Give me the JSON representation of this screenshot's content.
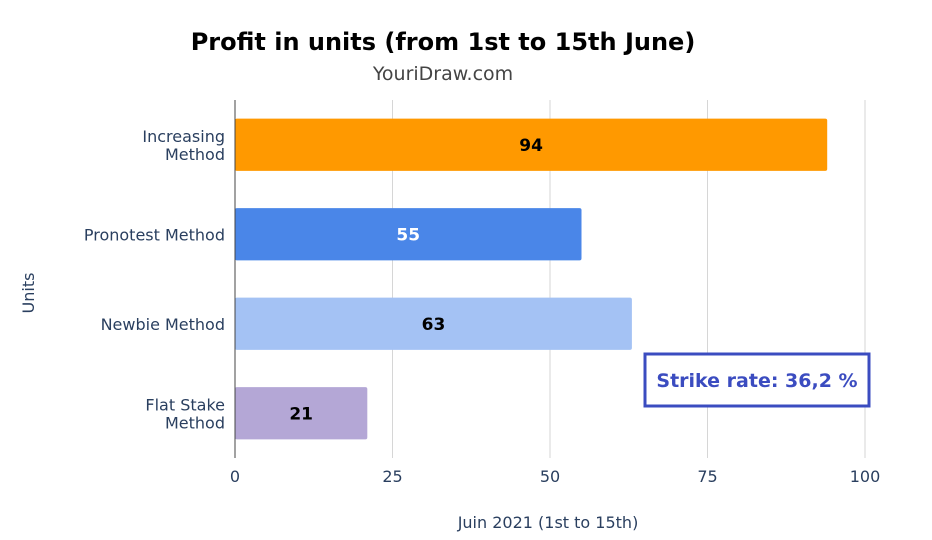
{
  "chart_data": {
    "type": "bar",
    "orientation": "horizontal",
    "title": "Profit in units (from 1st to 15th June)",
    "subtitle": "YouriDraw.com",
    "xlabel": "Juin 2021 (1st to 15th)",
    "ylabel": "Units",
    "xlim": [
      0,
      100
    ],
    "xticks": [
      "0",
      "25",
      "50",
      "75",
      "100"
    ],
    "grid": true,
    "categories": [
      [
        "Increasing",
        "Method"
      ],
      [
        "Pronotest Method"
      ],
      [
        "Newbie Method"
      ],
      [
        "Flat Stake",
        "Method"
      ]
    ],
    "values": [
      94,
      55,
      63,
      21
    ],
    "data_labels": [
      "94",
      "55",
      "63",
      "21"
    ],
    "colors": [
      "#FF9900",
      "#4A86E8",
      "#A4C2F4",
      "#B4A7D6"
    ],
    "label_colors": [
      "#000000",
      "#ffffff",
      "#000000",
      "#000000"
    ],
    "annotation": {
      "text": "Strike rate: 36,2 %",
      "border_color": "#3b4cc0",
      "text_color": "#3b4cc0"
    }
  }
}
